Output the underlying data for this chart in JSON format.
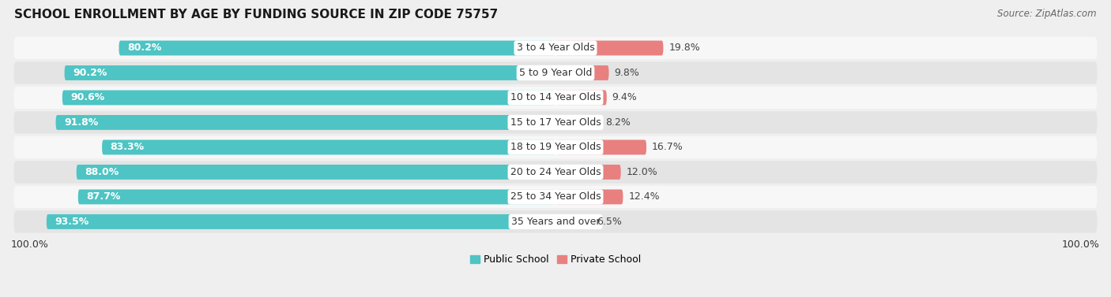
{
  "title": "SCHOOL ENROLLMENT BY AGE BY FUNDING SOURCE IN ZIP CODE 75757",
  "source": "Source: ZipAtlas.com",
  "categories": [
    "3 to 4 Year Olds",
    "5 to 9 Year Old",
    "10 to 14 Year Olds",
    "15 to 17 Year Olds",
    "18 to 19 Year Olds",
    "20 to 24 Year Olds",
    "25 to 34 Year Olds",
    "35 Years and over"
  ],
  "public_values": [
    80.2,
    90.2,
    90.6,
    91.8,
    83.3,
    88.0,
    87.7,
    93.5
  ],
  "private_values": [
    19.8,
    9.8,
    9.4,
    8.2,
    16.7,
    12.0,
    12.4,
    6.5
  ],
  "public_color": "#4ec4c4",
  "private_color": "#e88080",
  "public_label": "Public School",
  "private_label": "Private School",
  "background_color": "#efefef",
  "row_bg_light": "#f7f7f7",
  "row_bg_dark": "#e4e4e4",
  "left_label": "100.0%",
  "right_label": "100.0%",
  "title_fontsize": 11,
  "label_fontsize": 9,
  "value_fontsize": 9,
  "category_fontsize": 9,
  "source_fontsize": 8.5
}
